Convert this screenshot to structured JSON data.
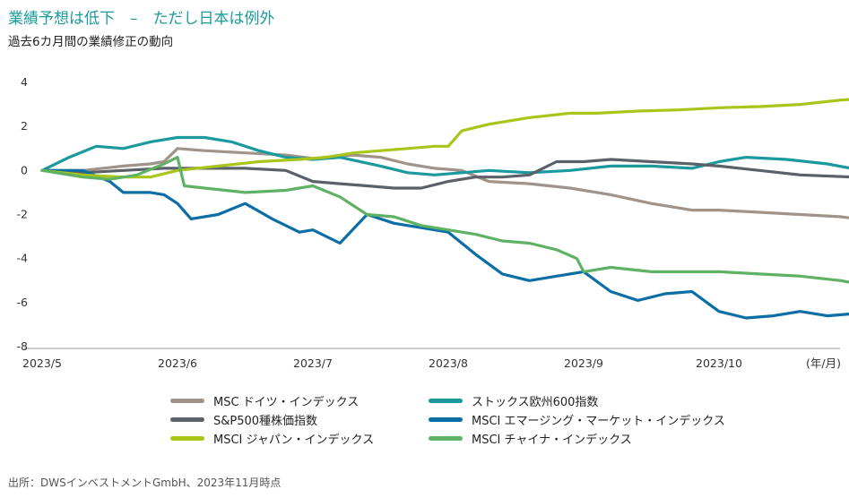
{
  "header": {
    "title": "業績予想は低下　–　ただし日本は例外",
    "subtitle": "過去6カ月間の業績修正の動向"
  },
  "footer": {
    "source": "出所：DWSインベストメントGmbH、2023年11月時点"
  },
  "chart_data": {
    "type": "line",
    "title": "業績予想は低下　–　ただし日本は例外",
    "subtitle": "過去6カ月間の業績修正の動向",
    "xlabel": "(年/月)",
    "ylabel": "",
    "ylim": [
      -8,
      4
    ],
    "yticks": [
      4,
      2,
      0,
      -2,
      -4,
      -6,
      -8
    ],
    "xlim": [
      0,
      6.15
    ],
    "xticks": [
      {
        "label": "2023/5",
        "pos": 0
      },
      {
        "label": "2023/6",
        "pos": 1
      },
      {
        "label": "2023/7",
        "pos": 2
      },
      {
        "label": "2023/8",
        "pos": 3
      },
      {
        "label": "2023/9",
        "pos": 4
      },
      {
        "label": "2023/10",
        "pos": 5
      }
    ],
    "grid": false,
    "legend_position": "bottom",
    "series": [
      {
        "name": "MSC ドイツ・インデックス",
        "color": "#a09389",
        "x": [
          0,
          0.3,
          0.6,
          0.8,
          0.9,
          1.0,
          1.2,
          1.5,
          1.8,
          2.0,
          2.3,
          2.5,
          2.7,
          2.9,
          3.1,
          3.3,
          3.6,
          3.9,
          4.2,
          4.5,
          4.8,
          5.0,
          5.3,
          5.6,
          5.9,
          6.15
        ],
        "values": [
          0.0,
          0.0,
          0.2,
          0.3,
          0.4,
          1.0,
          0.9,
          0.8,
          0.7,
          0.55,
          0.7,
          0.6,
          0.3,
          0.1,
          0.0,
          -0.5,
          -0.6,
          -0.8,
          -1.1,
          -1.5,
          -1.8,
          -1.8,
          -1.9,
          -2.0,
          -2.1,
          -2.3
        ]
      },
      {
        "name": "ストックス欧州600指数",
        "color": "#1a9a9e",
        "x": [
          0,
          0.2,
          0.4,
          0.6,
          0.8,
          1.0,
          1.2,
          1.4,
          1.6,
          1.8,
          2.0,
          2.2,
          2.5,
          2.7,
          2.9,
          3.1,
          3.3,
          3.6,
          3.9,
          4.2,
          4.5,
          4.8,
          5.0,
          5.2,
          5.5,
          5.8,
          6.15
        ],
        "values": [
          0.0,
          0.6,
          1.1,
          1.0,
          1.3,
          1.5,
          1.5,
          1.3,
          0.9,
          0.6,
          0.5,
          0.6,
          0.2,
          -0.1,
          -0.2,
          -0.1,
          0.0,
          -0.1,
          0.0,
          0.2,
          0.2,
          0.1,
          0.4,
          0.6,
          0.5,
          0.3,
          -0.1
        ]
      },
      {
        "name": "S&P500種株価指数",
        "color": "#5a6168",
        "x": [
          0,
          0.3,
          0.6,
          0.9,
          1.2,
          1.5,
          1.8,
          2.0,
          2.2,
          2.4,
          2.6,
          2.8,
          3.0,
          3.2,
          3.4,
          3.6,
          3.8,
          4.0,
          4.2,
          4.5,
          4.8,
          5.0,
          5.3,
          5.6,
          6.0,
          6.15
        ],
        "values": [
          0.0,
          -0.1,
          0.0,
          0.1,
          0.1,
          0.1,
          0.0,
          -0.5,
          -0.6,
          -0.7,
          -0.8,
          -0.8,
          -0.5,
          -0.3,
          -0.3,
          -0.2,
          0.4,
          0.4,
          0.5,
          0.4,
          0.3,
          0.2,
          0.0,
          -0.2,
          -0.3,
          -0.3
        ]
      },
      {
        "name": "MSCI エマージング・マーケット・インデックス",
        "color": "#0b6ea5",
        "x": [
          0,
          0.3,
          0.5,
          0.6,
          0.8,
          0.9,
          1.0,
          1.1,
          1.3,
          1.5,
          1.7,
          1.9,
          2.0,
          2.2,
          2.4,
          2.5,
          2.6,
          2.8,
          3.0,
          3.2,
          3.4,
          3.6,
          3.8,
          4.0,
          4.2,
          4.4,
          4.6,
          4.8,
          5.0,
          5.2,
          5.4,
          5.6,
          5.8,
          6.0,
          6.15
        ],
        "values": [
          0.0,
          0.0,
          -0.5,
          -1.0,
          -1.0,
          -1.1,
          -1.5,
          -2.2,
          -2.0,
          -1.5,
          -2.2,
          -2.8,
          -2.7,
          -3.3,
          -2.0,
          -2.2,
          -2.4,
          -2.6,
          -2.8,
          -3.8,
          -4.7,
          -5.0,
          -4.8,
          -4.6,
          -5.5,
          -5.9,
          -5.6,
          -5.5,
          -6.4,
          -6.7,
          -6.6,
          -6.4,
          -6.6,
          -6.5,
          -6.6
        ]
      },
      {
        "name": "MSCI ジャパン・インデックス",
        "color": "#a8c61a",
        "x": [
          0,
          0.3,
          0.6,
          0.8,
          1.0,
          1.3,
          1.6,
          1.9,
          2.1,
          2.3,
          2.5,
          2.7,
          2.9,
          3.0,
          3.1,
          3.3,
          3.6,
          3.9,
          4.1,
          4.4,
          4.7,
          5.0,
          5.3,
          5.6,
          5.9,
          6.15
        ],
        "values": [
          0.0,
          -0.2,
          -0.3,
          -0.3,
          0.0,
          0.2,
          0.4,
          0.5,
          0.6,
          0.8,
          0.9,
          1.0,
          1.1,
          1.1,
          1.8,
          2.1,
          2.4,
          2.6,
          2.6,
          2.7,
          2.75,
          2.85,
          2.9,
          3.0,
          3.2,
          3.3
        ]
      },
      {
        "name": "MSCI チャイナ・インデックス",
        "color": "#5fb264",
        "x": [
          0,
          0.3,
          0.5,
          0.7,
          0.9,
          1.0,
          1.05,
          1.2,
          1.5,
          1.8,
          2.0,
          2.2,
          2.4,
          2.6,
          2.8,
          3.0,
          3.2,
          3.4,
          3.6,
          3.8,
          3.95,
          4.0,
          4.2,
          4.5,
          4.8,
          5.0,
          5.3,
          5.6,
          5.9,
          6.15
        ],
        "values": [
          0.0,
          -0.3,
          -0.4,
          -0.2,
          0.3,
          0.6,
          -0.7,
          -0.8,
          -1.0,
          -0.9,
          -0.7,
          -1.2,
          -2.0,
          -2.1,
          -2.5,
          -2.7,
          -2.9,
          -3.2,
          -3.3,
          -3.6,
          -4.0,
          -4.6,
          -4.4,
          -4.6,
          -4.6,
          -4.6,
          -4.7,
          -4.8,
          -5.0,
          -5.3
        ]
      }
    ]
  }
}
